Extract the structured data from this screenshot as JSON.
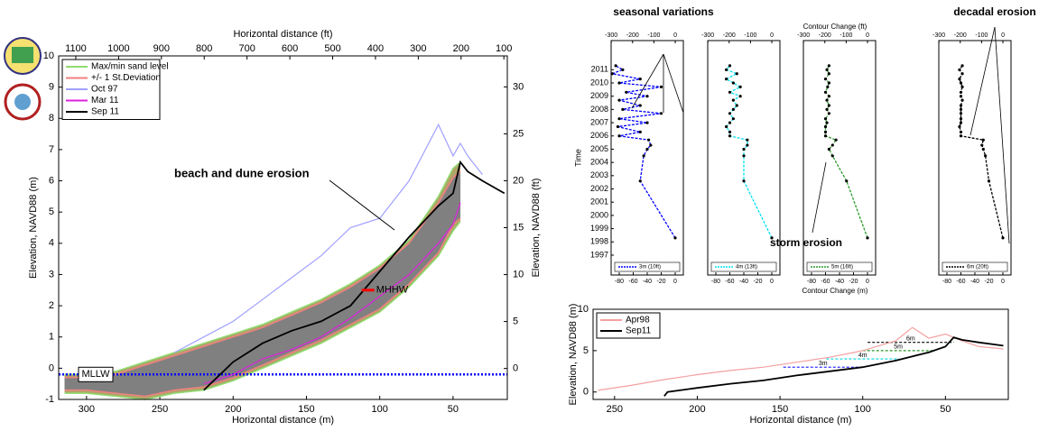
{
  "chart_data": [
    {
      "type": "line",
      "x_label": "Horizontal distance (m)",
      "x2_label": "Horizontal distance (ft)",
      "y_label": "Elevation, NAVD88 (m)",
      "y2_label": "Elevation, NAVD88 (ft)",
      "xlim": [
        319,
        13
      ],
      "xticks": [
        300,
        250,
        200,
        150,
        100,
        50
      ],
      "x2lim": [
        1140,
        92
      ],
      "x2ticks": [
        1100,
        1000,
        900,
        800,
        700,
        600,
        500,
        400,
        300,
        200,
        100
      ],
      "ylim": [
        -1,
        10
      ],
      "yticks": [
        -1,
        0,
        1,
        2,
        3,
        4,
        5,
        6,
        7,
        8,
        9,
        10
      ],
      "y2lim": [
        -3.3,
        33.3
      ],
      "y2ticks": [
        0,
        5,
        10,
        15,
        20,
        25,
        30
      ],
      "legend": "upper left",
      "x": [
        315,
        300,
        280,
        260,
        240,
        220,
        200,
        180,
        160,
        140,
        120,
        100,
        80,
        60,
        50,
        45,
        40,
        30,
        15
      ],
      "bands": [
        {
          "name": "Max/min sand level",
          "color": "#8fdc6f",
          "fill": "#b0a468",
          "upper": [
            -0.2,
            -0.2,
            -0.1,
            0.2,
            0.5,
            0.8,
            1.1,
            1.4,
            1.8,
            2.2,
            2.7,
            3.3,
            4.1,
            5.5,
            6.4,
            6.6,
            null,
            null,
            null
          ],
          "lower": [
            -0.8,
            -0.8,
            -0.9,
            -1.0,
            -0.8,
            -0.7,
            -0.4,
            0.0,
            0.4,
            0.8,
            1.3,
            1.8,
            2.6,
            3.6,
            4.4,
            4.7,
            null,
            null,
            null
          ]
        },
        {
          "name": "+/- 1 St.Deviation",
          "color": "#f08080",
          "fill": "#808080",
          "upper": [
            -0.3,
            -0.3,
            -0.2,
            0.1,
            0.4,
            0.7,
            1.0,
            1.3,
            1.7,
            2.1,
            2.6,
            3.2,
            4.0,
            5.3,
            6.1,
            6.3,
            null,
            null,
            null
          ],
          "lower": [
            -0.7,
            -0.7,
            -0.8,
            -0.9,
            -0.7,
            -0.6,
            -0.3,
            0.1,
            0.5,
            0.9,
            1.4,
            1.9,
            2.7,
            3.7,
            4.6,
            4.8,
            null,
            null,
            null
          ]
        }
      ],
      "series": [
        {
          "name": "Oct 97",
          "color": "#a0a0ff",
          "values": [
            null,
            null,
            null,
            null,
            0.5,
            1.0,
            1.5,
            2.2,
            2.9,
            3.6,
            4.5,
            4.8,
            6.0,
            7.8,
            6.8,
            7.2,
            6.8,
            6.2,
            null
          ]
        },
        {
          "name": "Mar 11",
          "color": "#e020e0",
          "values": [
            null,
            null,
            null,
            null,
            null,
            -0.5,
            -0.2,
            0.3,
            0.6,
            1.0,
            1.6,
            2.3,
            3.0,
            4.0,
            4.6,
            5.3,
            null,
            null,
            null
          ]
        },
        {
          "name": "Sep 11",
          "color": "#000000",
          "values": [
            null,
            null,
            null,
            null,
            null,
            -0.7,
            0.2,
            0.8,
            1.2,
            1.5,
            2.0,
            3.1,
            4.2,
            5.2,
            5.6,
            6.6,
            6.3,
            6.0,
            5.6
          ]
        }
      ],
      "hlines": [
        {
          "label": "MLLW",
          "value": -0.2,
          "color": "#0000ff"
        }
      ],
      "markers": [
        {
          "label": "MHHW",
          "value": 2.5,
          "x": 108,
          "color": "#ff0000"
        }
      ],
      "annotation": "beach and dune erosion"
    },
    {
      "type": "profile",
      "x_label": "Contour Change (m)",
      "x2_label": "Contour Change (ft)",
      "y_label": "Time",
      "annotation": "seasonal variations",
      "xlim": [
        -91.6,
        11.6
      ],
      "xticks": [
        -80,
        -60,
        -40,
        -20,
        0
      ],
      "x2lim": [
        -300.5,
        38
      ],
      "x2ticks": [
        -300,
        -200,
        -100,
        0
      ],
      "ylim": [
        1995.5,
        2013.2
      ],
      "yticks": [
        1997,
        1998,
        1999,
        2000,
        2001,
        2002,
        2003,
        2004,
        2005,
        2006,
        2007,
        2008,
        2009,
        2010,
        2011
      ],
      "time": [
        1998.3,
        2002.6,
        2004.5,
        2005.0,
        2005.3,
        2005.7,
        2006.0,
        2006.3,
        2006.7,
        2007.0,
        2007.3,
        2007.7,
        2008.0,
        2008.3,
        2008.7,
        2009.0,
        2009.3,
        2009.7,
        2010.0,
        2010.3,
        2010.7,
        2011.0,
        2011.3
      ],
      "series": [
        {
          "name": "3m (10ft)",
          "color": "#0000ff",
          "values": [
            0,
            -50,
            -45,
            -40,
            -35,
            -38,
            -80,
            -50,
            -82,
            -40,
            -80,
            -20,
            -75,
            -50,
            -80,
            -40,
            -70,
            -20,
            -80,
            -50,
            -90,
            -75,
            -85
          ]
        }
      ]
    },
    {
      "type": "profile",
      "xlim": [
        -91.6,
        11.6
      ],
      "xticks": [
        -80,
        -60,
        -40,
        -20,
        0
      ],
      "x2lim": [
        -300.5,
        38
      ],
      "x2ticks": [
        -300,
        -200,
        -100,
        0
      ],
      "ylim": [
        1995.5,
        2013.2
      ],
      "time": [
        1998.3,
        2002.6,
        2004.5,
        2005.0,
        2005.3,
        2005.7,
        2006.0,
        2006.3,
        2006.7,
        2007.0,
        2007.3,
        2007.7,
        2008.0,
        2008.3,
        2008.7,
        2009.0,
        2009.3,
        2009.7,
        2010.0,
        2010.3,
        2010.7,
        2011.0,
        2011.3
      ],
      "series": [
        {
          "name": "4m (13ft)",
          "color": "#00e0f0",
          "values": [
            0,
            -40,
            -40,
            -40,
            -35,
            -35,
            -60,
            -60,
            -65,
            -60,
            -55,
            -60,
            -55,
            -50,
            -55,
            -45,
            -60,
            -45,
            -55,
            -65,
            -50,
            -65,
            -60
          ]
        }
      ]
    },
    {
      "type": "profile",
      "annotation": "storm erosion",
      "xlim": [
        -91.6,
        11.6
      ],
      "xticks": [
        -80,
        -60,
        -40,
        -20,
        0
      ],
      "x2lim": [
        -300.5,
        38
      ],
      "x2ticks": [
        -300,
        -200,
        -100,
        0
      ],
      "ylim": [
        1995.5,
        2013.2
      ],
      "time": [
        1998.3,
        2002.6,
        2004.5,
        2005.0,
        2005.3,
        2005.7,
        2006.0,
        2006.3,
        2006.7,
        2007.0,
        2007.3,
        2007.7,
        2008.0,
        2008.3,
        2008.7,
        2009.0,
        2009.3,
        2009.7,
        2010.0,
        2010.3,
        2010.7,
        2011.0,
        2011.3
      ],
      "series": [
        {
          "name": "5m (16ft)",
          "color": "#2a9a2a",
          "values": [
            0,
            -30,
            -50,
            -55,
            -50,
            -45,
            -60,
            -60,
            -60,
            -58,
            -60,
            -55,
            -58,
            -55,
            -58,
            -55,
            -60,
            -57,
            -55,
            -60,
            -55,
            -58,
            -55
          ]
        }
      ]
    },
    {
      "type": "profile",
      "annotation": "decadal erosion",
      "xlim": [
        -91.6,
        11.6
      ],
      "xticks": [
        -80,
        -60,
        -40,
        -20,
        0
      ],
      "x2lim": [
        -300.5,
        38
      ],
      "x2ticks": [
        -300,
        -200,
        -100,
        0
      ],
      "ylim": [
        1995.5,
        2013.2
      ],
      "time": [
        1998.3,
        2002.6,
        2004.5,
        2005.0,
        2005.3,
        2005.7,
        2006.0,
        2006.3,
        2006.7,
        2007.0,
        2007.3,
        2007.7,
        2008.0,
        2008.3,
        2008.7,
        2009.0,
        2009.3,
        2009.7,
        2010.0,
        2010.3,
        2010.7,
        2011.0,
        2011.3
      ],
      "series": [
        {
          "name": "6m (20ft)",
          "color": "#000000",
          "values": [
            0,
            -20,
            -25,
            -28,
            -30,
            -28,
            -60,
            -60,
            -62,
            -60,
            -60,
            -60,
            -60,
            -60,
            -58,
            -60,
            -60,
            -58,
            -60,
            -62,
            -58,
            -62,
            -58
          ]
        }
      ]
    },
    {
      "type": "line",
      "x_label": "Horizontal distance (m)",
      "y_label": "Elevation, NAVD88 (m)",
      "xlim": [
        263,
        12
      ],
      "xticks": [
        250,
        200,
        150,
        100,
        50
      ],
      "ylim": [
        -0.9,
        10
      ],
      "yticks": [
        0,
        5,
        10
      ],
      "legend": "upper left",
      "series": [
        {
          "name": "Apr98",
          "color": "#f4a0a0",
          "x": [
            260,
            240,
            220,
            200,
            180,
            160,
            140,
            120,
            100,
            80,
            70,
            60,
            50,
            40,
            30,
            15
          ],
          "values": [
            0.2,
            0.8,
            1.5,
            2.1,
            2.6,
            3.0,
            3.6,
            4.2,
            5.0,
            6.2,
            7.8,
            6.5,
            7.0,
            6.2,
            5.5,
            5.2
          ]
        },
        {
          "name": "Sep11",
          "color": "#000000",
          "x": [
            220,
            218,
            200,
            180,
            160,
            140,
            120,
            100,
            80,
            60,
            50,
            45,
            40,
            30,
            15
          ],
          "values": [
            -0.5,
            0,
            0.5,
            1.0,
            1.4,
            2.0,
            2.5,
            3.0,
            3.8,
            4.8,
            5.5,
            6.6,
            6.3,
            6.0,
            5.6
          ]
        }
      ],
      "contours": [
        {
          "label": "3m",
          "value": 3,
          "x": [
            148,
            100
          ],
          "color": "#3333ff"
        },
        {
          "label": "4m",
          "value": 4,
          "x": [
            122,
            78
          ],
          "color": "#00d0e0"
        },
        {
          "label": "5m",
          "value": 5,
          "x": [
            100,
            57
          ],
          "color": "#2a9a2a"
        },
        {
          "label": "6m",
          "value": 6,
          "x": [
            97,
            45
          ],
          "color": "#000000"
        }
      ]
    }
  ]
}
